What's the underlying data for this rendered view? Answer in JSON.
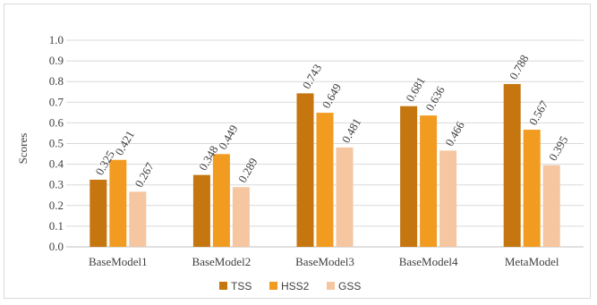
{
  "chart_data": {
    "type": "bar",
    "title": "",
    "xlabel": "",
    "ylabel": "Scores",
    "ylim": [
      0,
      1.0
    ],
    "yticks": [
      "0.0",
      "0.1",
      "0.2",
      "0.3",
      "0.4",
      "0.5",
      "0.6",
      "0.7",
      "0.8",
      "0.9",
      "1.0"
    ],
    "grid": true,
    "legend_position": "bottom",
    "categories": [
      "BaseModel1",
      "BaseModel2",
      "BaseModel3",
      "BaseModel4",
      "MetaModel"
    ],
    "series": [
      {
        "name": "TSS",
        "color": "#c5760f",
        "values": [
          0.325,
          0.348,
          0.743,
          0.681,
          0.788
        ],
        "labels": [
          "0.325",
          "0.348",
          "0.743",
          "0.681",
          "0.788"
        ]
      },
      {
        "name": "HSS2",
        "color": "#f29b21",
        "values": [
          0.421,
          0.449,
          0.649,
          0.636,
          0.567
        ],
        "labels": [
          "0.421",
          "0.449",
          "0.649",
          "0.636",
          "0.567"
        ]
      },
      {
        "name": "GSS",
        "color": "#f5c6a0",
        "values": [
          0.267,
          0.289,
          0.481,
          0.466,
          0.395
        ],
        "labels": [
          "0.267",
          "0.289",
          "0.481",
          "0.466",
          "0.395"
        ]
      }
    ]
  }
}
